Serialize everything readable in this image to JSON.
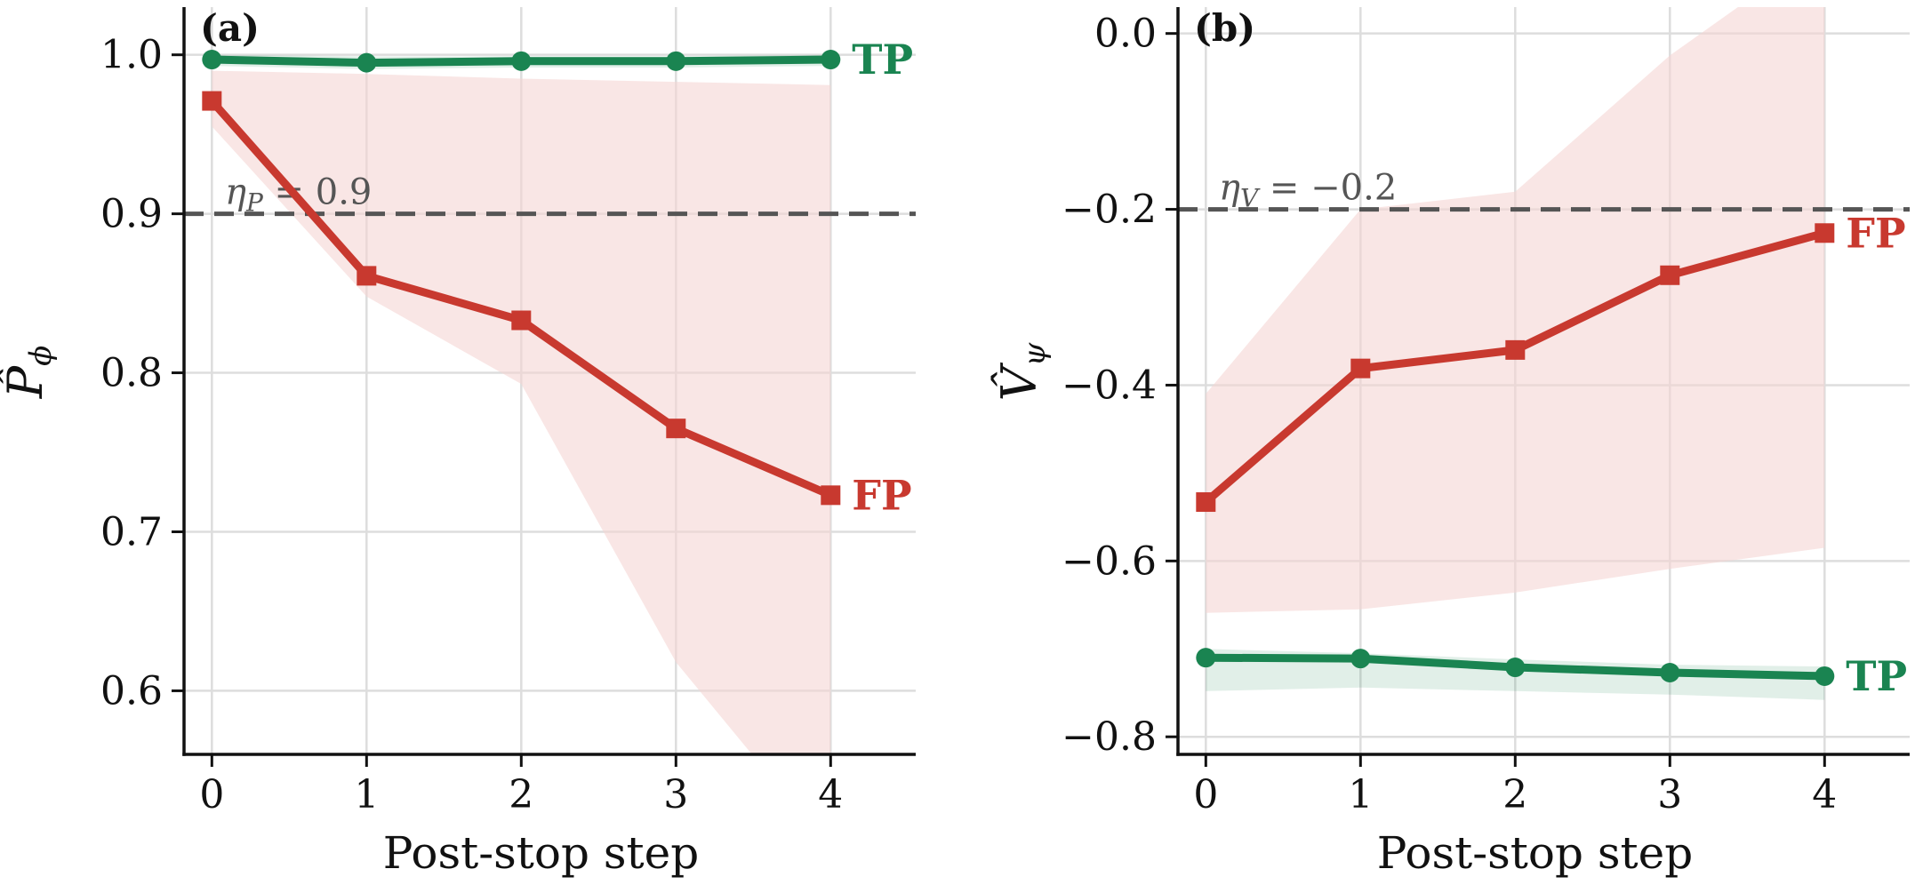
{
  "chart_data": [
    {
      "type": "line",
      "panel_label": "(a)",
      "xlabel": "Post-stop step",
      "ylabel": {
        "main": "P̂",
        "sub": "ϕ"
      },
      "x": [
        0,
        1,
        2,
        3,
        4
      ],
      "xticks": [
        "0",
        "1",
        "2",
        "3",
        "4"
      ],
      "xlim": [
        -0.18,
        4.55
      ],
      "ylim": [
        0.56,
        1.03
      ],
      "yticks": [
        0.6,
        0.7,
        0.8,
        0.9,
        1.0
      ],
      "ytick_labels": [
        "0.6",
        "0.7",
        "0.8",
        "0.9",
        "1.0"
      ],
      "grid": true,
      "threshold": {
        "value": 0.9,
        "label_sym": "η",
        "label_sub": "P",
        "label_rest": " = 0.9"
      },
      "series": [
        {
          "name": "TP",
          "color": "#1a8451",
          "band_color": "#1a8451",
          "marker": "circle",
          "values": [
            0.997,
            0.995,
            0.996,
            0.996,
            0.997
          ],
          "band_low": [
            0.993,
            0.991,
            0.992,
            0.992,
            0.993
          ],
          "band_high": [
            1.0,
            0.999,
            0.999,
            0.999,
            1.0
          ]
        },
        {
          "name": "FP",
          "color": "#c8392f",
          "band_color": "#f5d5d3",
          "marker": "square",
          "values": [
            0.971,
            0.861,
            0.833,
            0.765,
            0.723
          ],
          "band_low": [
            0.955,
            0.848,
            0.793,
            0.618,
            0.5
          ],
          "band_high": [
            0.99,
            0.988,
            0.985,
            0.983,
            0.981
          ]
        }
      ]
    },
    {
      "type": "line",
      "panel_label": "(b)",
      "xlabel": "Post-stop step",
      "ylabel": {
        "main": "V̂",
        "sub": "ψ"
      },
      "x": [
        0,
        1,
        2,
        3,
        4
      ],
      "xticks": [
        "0",
        "1",
        "2",
        "3",
        "4"
      ],
      "xlim": [
        -0.18,
        4.55
      ],
      "ylim": [
        -0.82,
        0.03
      ],
      "yticks": [
        -0.8,
        -0.6,
        -0.4,
        -0.2,
        0.0
      ],
      "ytick_labels": [
        "−0.8",
        "−0.6",
        "−0.4",
        "−0.2",
        "0.0"
      ],
      "grid": true,
      "threshold": {
        "value": -0.2,
        "label_sym": "η",
        "label_sub": "V",
        "label_rest": " = −0.2"
      },
      "series": [
        {
          "name": "FP",
          "color": "#c8392f",
          "band_color": "#f5d5d3",
          "marker": "square",
          "values": [
            -0.533,
            -0.381,
            -0.36,
            -0.275,
            -0.227
          ],
          "band_low": [
            -0.659,
            -0.655,
            -0.636,
            -0.609,
            -0.585
          ],
          "band_high": [
            -0.41,
            -0.2,
            -0.18,
            -0.025,
            0.1
          ]
        },
        {
          "name": "TP",
          "color": "#1a8451",
          "band_color": "#1a8451",
          "marker": "circle",
          "values": [
            -0.71,
            -0.711,
            -0.721,
            -0.727,
            -0.731
          ],
          "band_low": [
            -0.748,
            -0.744,
            -0.748,
            -0.752,
            -0.758
          ],
          "band_high": [
            -0.7,
            -0.705,
            -0.712,
            -0.718,
            -0.72
          ]
        }
      ]
    }
  ]
}
